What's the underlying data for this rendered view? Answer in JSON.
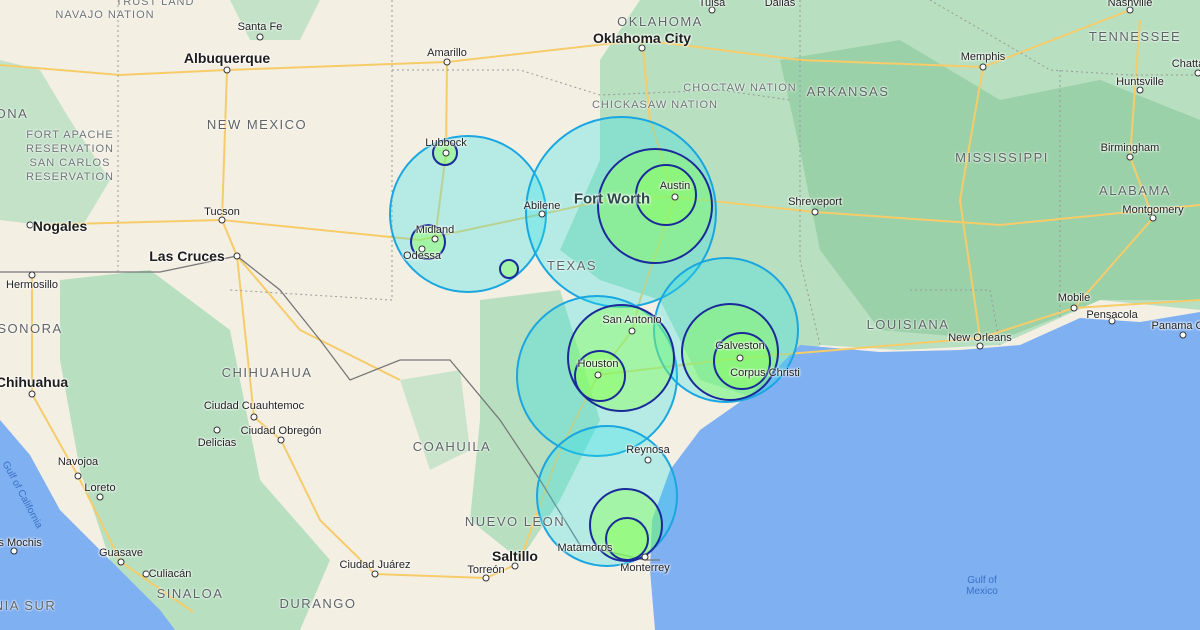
{
  "map": {
    "colors": {
      "land": "#f4efe3",
      "forest": "#b7dfc0",
      "dense_forest": "#8fcb9e",
      "water": "#7fb0f2",
      "road": "#f6cc6a",
      "radius_outer": "#1aa6e0",
      "radius_inner": "#1a2a9a"
    },
    "cities": [
      "Santa Fe",
      "Albuquerque",
      "Amarillo",
      "Oklahoma City",
      "Tulsa",
      "Dallas",
      "Nashville",
      "Memphis",
      "Huntsville",
      "Chatta",
      "Birmingham",
      "Montgomery",
      "Shreveport",
      "Mobile",
      "Pensacola",
      "Panama City",
      "New Orleans",
      "Lubbock",
      "Midland",
      "Odessa",
      "Abilene",
      "Fort Worth",
      "Austin",
      "San Antonio",
      "Houston",
      "Galveston",
      "Corpus Christi",
      "Reynosa",
      "Matamoros",
      "Monterrey",
      "Saltillo",
      "Torreón",
      "Ciudad Juárez",
      "Las Cruces",
      "Tucson",
      "Nogales",
      "Hermosillo",
      "Chihuahua",
      "Ciudad Cuauhtemoc",
      "Delicias",
      "Ciudad Obregón",
      "Navojoa",
      "Loreto",
      "Los Mochis",
      "Guasave",
      "Culiacán"
    ],
    "regions": [
      "TRUST LAND",
      "NAVAJO NATION",
      "NEW MEXICO",
      "FORT APACHE RESERVATION",
      "SAN CARLOS RESERVATION",
      "OKLAHOMA",
      "CHICKASAW NATION",
      "CHOCTAW NATION",
      "ARKANSAS",
      "TENNESSEE",
      "MISSISSIPPI",
      "ALABAMA",
      "LOUISIANA",
      "TEXAS",
      "CHIHUAHUA",
      "COAHUILA",
      "NUEVO LEON",
      "SONORA",
      "SINALOA",
      "DURANGO",
      "ONA",
      "NIA SUR"
    ],
    "water_labels": [
      "Gulf of Mexico",
      "Gulf of California"
    ]
  }
}
